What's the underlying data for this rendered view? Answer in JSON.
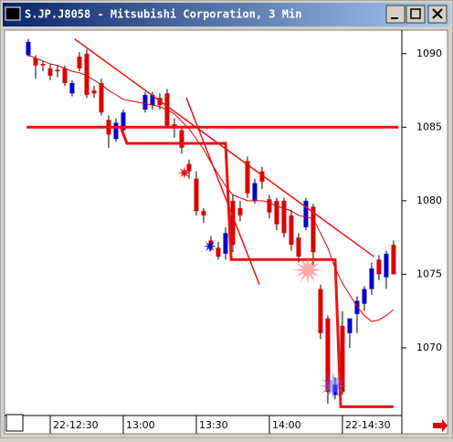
{
  "chart_data": {
    "type": "candlestick",
    "title": "S.JP.J8058 - Mitsubishi Corporation, 3 Min",
    "x": [
      741,
      744,
      747,
      750,
      753,
      756,
      759,
      762,
      765,
      768,
      771,
      774,
      777,
      780,
      789,
      792,
      795,
      798,
      801,
      804,
      807,
      810,
      813,
      816,
      819,
      822,
      825,
      828,
      831,
      834,
      837,
      840,
      843,
      846,
      849,
      852,
      855,
      858,
      861,
      864,
      867,
      870,
      873,
      876,
      879,
      882,
      885,
      888,
      891
    ],
    "open": [
      1089.9,
      1089.7,
      1089.3,
      1089.0,
      1088.9,
      1089.0,
      1087.3,
      1089.8,
      1090.0,
      1087.5,
      1088.0,
      1085.5,
      1084.2,
      1084.8,
      1086.2,
      1086.5,
      1087.0,
      1087.3,
      1085.2,
      1084.8,
      1082.5,
      1081.5,
      1079.3,
      1077.3,
      1076.8,
      1076.4,
      1080.0,
      1079.5,
      1082.7,
      1080.0,
      1082.0,
      1080.1,
      1080.0,
      1080.0,
      1079.0,
      1077.5,
      1078.2,
      1079.6,
      1074.0,
      1072.0,
      1066.8,
      1071.5,
      1071.0,
      1072.3,
      1073.0,
      1074.0,
      1076.0,
      1074.8,
      1077.0
    ],
    "high": [
      1091.0,
      1089.9,
      1089.5,
      1089.3,
      1089.2,
      1089.2,
      1088.2,
      1090.1,
      1090.3,
      1087.8,
      1088.3,
      1085.8,
      1085.6,
      1086.2,
      1087.4,
      1087.4,
      1087.3,
      1087.6,
      1085.6,
      1085.0,
      1082.8,
      1082.0,
      1079.5,
      1077.6,
      1077.2,
      1078.2,
      1080.4,
      1080.0,
      1083.0,
      1081.5,
      1082.3,
      1080.4,
      1080.2,
      1080.2,
      1079.4,
      1077.8,
      1080.2,
      1079.8,
      1074.3,
      1072.2,
      1068.0,
      1072.5,
      1072.0,
      1073.5,
      1074.2,
      1075.8,
      1076.3,
      1076.6,
      1077.3
    ],
    "low": [
      1089.8,
      1088.3,
      1088.8,
      1088.2,
      1088.4,
      1087.8,
      1087.1,
      1088.8,
      1087.0,
      1087.0,
      1085.8,
      1083.6,
      1084.0,
      1084.6,
      1086.0,
      1086.2,
      1086.2,
      1085.0,
      1084.3,
      1083.2,
      1081.5,
      1079.0,
      1078.5,
      1076.6,
      1076.0,
      1076.0,
      1076.5,
      1078.6,
      1080.2,
      1079.8,
      1080.8,
      1078.8,
      1078.0,
      1077.5,
      1076.6,
      1075.8,
      1078.0,
      1075.6,
      1070.6,
      1066.2,
      1066.5,
      1066.8,
      1070.0,
      1071.0,
      1072.5,
      1073.6,
      1074.6,
      1074.0,
      1075.0
    ],
    "close": [
      1090.8,
      1089.2,
      1089.2,
      1088.5,
      1088.8,
      1088.0,
      1088.0,
      1089.0,
      1087.2,
      1087.3,
      1086.0,
      1084.5,
      1085.3,
      1086.0,
      1087.2,
      1087.2,
      1086.5,
      1085.1,
      1085.0,
      1083.6,
      1082.0,
      1079.3,
      1079.0,
      1077.0,
      1076.2,
      1077.8,
      1077.0,
      1079.0,
      1080.5,
      1081.2,
      1081.3,
      1079.2,
      1078.4,
      1077.8,
      1077.0,
      1076.2,
      1080.0,
      1076.5,
      1071.0,
      1067.0,
      1067.5,
      1067.0,
      1072.0,
      1073.2,
      1074.0,
      1075.4,
      1075.0,
      1076.4,
      1075.0
    ],
    "ma": [
      1089.9,
      1089.7,
      1089.5,
      1089.3,
      1089.2,
      1089.0,
      1088.8,
      1088.7,
      1088.5,
      1088.2,
      1087.9,
      1087.5,
      1087.2,
      1086.9,
      1086.6,
      1086.5,
      1086.4,
      1086.2,
      1085.9,
      1085.4,
      1084.9,
      1084.2,
      1083.5,
      1082.6,
      1081.8,
      1081.0,
      1080.4,
      1080.2,
      1080.0,
      1080.0,
      1080.0,
      1079.9,
      1079.6,
      1079.5,
      1079.3,
      1079.0,
      1078.9,
      1078.8,
      1077.8,
      1076.8,
      1075.4,
      1074.4,
      1073.6,
      1072.8,
      1072.2,
      1071.8,
      1071.9,
      1072.2,
      1072.6
    ],
    "up_color": "#0000cc",
    "down_color": "#dd0000",
    "ma_color": "#dd0000",
    "lines": [
      {
        "color": "#ee1111",
        "points": [
          [
            760,
            1091
          ],
          [
            883,
            1076.2
          ]
        ]
      },
      {
        "color": "#ee1111",
        "points": [
          [
            805.9,
            1087
          ],
          [
            835.9,
            1074.3
          ]
        ]
      },
      {
        "color": "#ee1111",
        "points": [
          [
            740.3,
            1085
          ],
          [
            893,
            1085
          ]
        ]
      },
      {
        "color": "#ee1111",
        "points": [
          [
            779,
            1085
          ],
          [
            781.5,
            1083.9
          ],
          [
            822,
            1083.9
          ],
          [
            824.3,
            1076
          ],
          [
            867,
            1076
          ],
          [
            869.3,
            1066
          ],
          [
            891,
            1066
          ]
        ]
      }
    ],
    "markers": [
      {
        "x": 805.1,
        "y": 1081.9,
        "color": "#dd0000"
      },
      {
        "x": 815.6,
        "y": 1076.9,
        "color": "#0000cc"
      },
      {
        "x": 855.75,
        "y": 1075.3,
        "color": "#ff6666"
      },
      {
        "x": 866.25,
        "y": 1067.4,
        "color": "#6666ff"
      }
    ],
    "xlim": [
      731.25,
      894.4
    ],
    "ylim": [
      1065.4,
      1091.6
    ],
    "xticks": [
      {
        "value": 750,
        "label": "22-12:30"
      },
      {
        "value": 780,
        "label": "13:00"
      },
      {
        "value": 810,
        "label": "13:30"
      },
      {
        "value": 840,
        "label": "14:00"
      },
      {
        "value": 870,
        "label": "22-14:30"
      }
    ],
    "yticks": [
      1070,
      1075,
      1080,
      1085,
      1090
    ]
  }
}
